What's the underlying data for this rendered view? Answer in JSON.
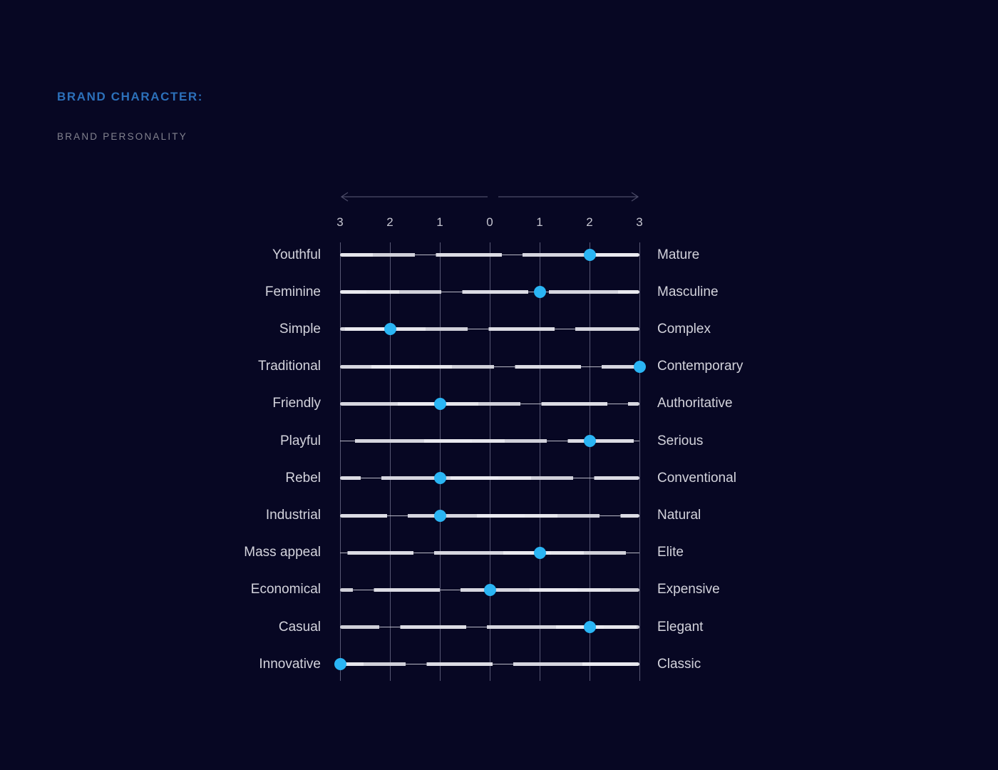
{
  "page": {
    "title": "BRAND CHARACTER:",
    "subtitle": "BRAND PERSONALITY"
  },
  "colors": {
    "background": "#070723",
    "heading_blue": "#2c70ba",
    "subtitle_gray": "#82828e",
    "trait_label": "#d3d3dc",
    "tick_label": "#c6c6d0",
    "gridline": "#585874",
    "scale_line": "#dcdce3",
    "dot_cyan": "#2ab5f4",
    "arrow": "#4c4c68"
  },
  "chart_data": {
    "type": "scatter",
    "title": "BRAND PERSONALITY",
    "description": "Semantic differential scale of brand traits; one dot per row, value from -3 (left trait) to +3 (right trait)",
    "axis": {
      "tick_labels": [
        "3",
        "2",
        "1",
        "0",
        "1",
        "2",
        "3"
      ],
      "tick_values": [
        -3,
        -2,
        -1,
        0,
        1,
        2,
        3
      ],
      "range": [
        -3,
        3
      ],
      "grid": true,
      "direction_arrows": "double, pointing outward from center"
    },
    "rows": [
      {
        "left": "Youthful",
        "right": "Mature",
        "value": 2
      },
      {
        "left": "Feminine",
        "right": "Masculine",
        "value": 1
      },
      {
        "left": "Simple",
        "right": "Complex",
        "value": -2
      },
      {
        "left": "Traditional",
        "right": "Contemporary",
        "value": 3
      },
      {
        "left": "Friendly",
        "right": "Authoritative",
        "value": -1
      },
      {
        "left": "Playful",
        "right": "Serious",
        "value": 2
      },
      {
        "left": "Rebel",
        "right": "Conventional",
        "value": -1
      },
      {
        "left": "Industrial",
        "right": "Natural",
        "value": -1
      },
      {
        "left": "Mass appeal",
        "right": "Elite",
        "value": 1
      },
      {
        "left": "Economical",
        "right": "Expensive",
        "value": 0
      },
      {
        "left": "Casual",
        "right": "Elegant",
        "value": 2
      },
      {
        "left": "Innovative",
        "right": "Classic",
        "value": -3
      }
    ]
  }
}
